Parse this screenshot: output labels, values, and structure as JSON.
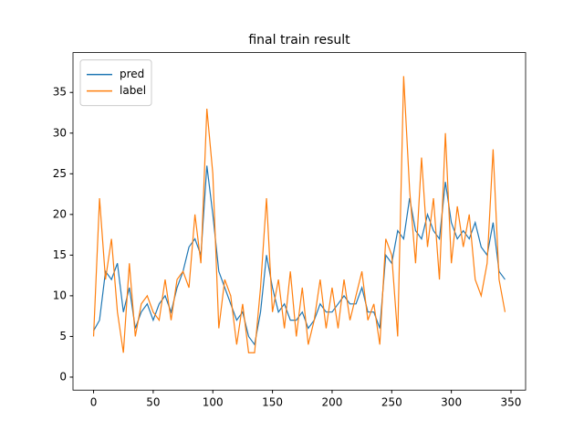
{
  "chart_data": {
    "type": "line",
    "title": "final train result",
    "x": [
      0,
      5,
      10,
      15,
      20,
      25,
      30,
      35,
      40,
      45,
      50,
      55,
      60,
      65,
      70,
      75,
      80,
      85,
      90,
      95,
      100,
      105,
      110,
      115,
      120,
      125,
      130,
      135,
      140,
      145,
      150,
      155,
      160,
      165,
      170,
      175,
      180,
      185,
      190,
      195,
      200,
      205,
      210,
      215,
      220,
      225,
      230,
      235,
      240,
      245,
      250,
      255,
      260,
      265,
      270,
      275,
      280,
      285,
      290,
      295,
      300,
      305,
      310,
      315,
      320,
      325,
      330,
      335,
      340,
      345
    ],
    "series": [
      {
        "name": "pred",
        "color": "#1f77b4",
        "values": [
          5.7,
          7,
          13,
          12,
          14,
          8,
          11,
          6,
          8,
          9,
          7,
          9,
          10,
          8,
          11,
          13,
          16,
          17,
          15,
          26,
          20,
          13,
          11,
          9,
          7,
          8,
          5,
          4,
          8,
          15,
          11,
          8,
          9,
          7,
          7,
          8,
          6,
          7,
          9,
          8,
          8,
          9,
          10,
          9,
          9,
          11,
          8,
          8,
          6,
          15,
          14,
          18,
          17,
          22,
          18,
          17,
          20,
          18,
          17,
          24,
          19,
          17,
          18,
          17,
          19,
          16,
          15,
          19,
          13,
          12
        ]
      },
      {
        "name": "label",
        "color": "#ff7f0e",
        "values": [
          5,
          22,
          12,
          17,
          8,
          3,
          14,
          5,
          9,
          10,
          8,
          7,
          12,
          7,
          12,
          13,
          11,
          20,
          14,
          33,
          25,
          6,
          12,
          10,
          4,
          9,
          3,
          3,
          11,
          22,
          8,
          12,
          6,
          13,
          5,
          11,
          4,
          7,
          12,
          6,
          11,
          6,
          12,
          7,
          10,
          13,
          7,
          9,
          4,
          17,
          15,
          5,
          37,
          23,
          14,
          27,
          16,
          22,
          12,
          30,
          14,
          21,
          16,
          20,
          12,
          10,
          14,
          28,
          12,
          8
        ]
      }
    ],
    "xlim": [
      -17.25,
      362.25
    ],
    "xticks": [
      0,
      50,
      100,
      150,
      200,
      250,
      300,
      350
    ],
    "ylim": [
      -1.6,
      39.9
    ],
    "yticks": [
      0,
      5,
      10,
      15,
      20,
      25,
      30,
      35
    ],
    "legend": "upper left"
  }
}
